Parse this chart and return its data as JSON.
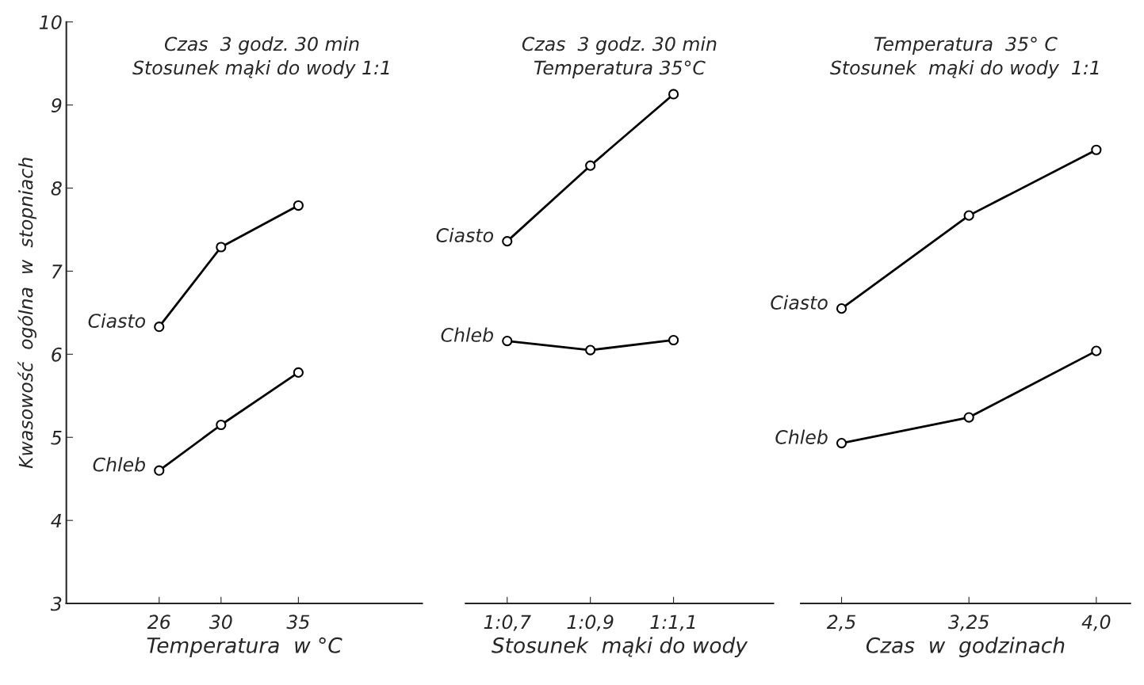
{
  "chart_data": [
    {
      "type": "line",
      "title": "Czas  3 godz. 30 min",
      "subtitle": "Stosunek mąki do wody 1:1",
      "xlabel": "Temperatura  w °C",
      "ylabel": "Kwasowość  ogólna  w  stopniach",
      "x": [
        26,
        30,
        35
      ],
      "xlim": [
        20,
        43
      ],
      "xticks": [
        26,
        30,
        35
      ],
      "ylim": [
        3,
        10
      ],
      "yticks": [
        3,
        4,
        5,
        6,
        7,
        8,
        9,
        10
      ],
      "marker": "circle",
      "series": [
        {
          "name": "Ciasto",
          "color": "#000000",
          "values": [
            6.33,
            7.29,
            7.79
          ]
        },
        {
          "name": "Chleb",
          "color": "#000000",
          "values": [
            4.6,
            5.15,
            5.78
          ]
        }
      ]
    },
    {
      "type": "line",
      "title": "Czas  3 godz. 30 min",
      "subtitle": "Temperatura 35°C",
      "xlabel": "Stosunek  mąki do wody",
      "categories": [
        "1:0,7",
        "1:0,9",
        "1:1,1"
      ],
      "ylim": [
        3,
        10
      ],
      "tick_labels": "x",
      "marker": "circle",
      "series": [
        {
          "name": "Ciasto",
          "color": "#000000",
          "values": [
            7.36,
            8.27,
            9.13
          ]
        },
        {
          "name": "Chleb",
          "color": "#000000",
          "values": [
            6.16,
            6.05,
            6.17
          ]
        }
      ]
    },
    {
      "type": "line",
      "title": "Temperatura  35° C",
      "subtitle": "Stosunek  mąki do wody  1:1",
      "xlabel": "Czas  w  godzinach",
      "x": [
        2.5,
        3.25,
        4.0
      ],
      "xlim": [
        2.26,
        4.2
      ],
      "xticks": [
        {
          "value": 2.5,
          "label": "2,5"
        },
        {
          "value": 3.25,
          "label": "3,25"
        },
        {
          "value": 4.0,
          "label": "4,0"
        }
      ],
      "ylim": [
        3,
        10
      ],
      "tick_labels": "x",
      "marker": "circle",
      "series": [
        {
          "name": "Ciasto",
          "color": "#000000",
          "values": [
            6.55,
            7.67,
            8.46
          ]
        },
        {
          "name": "Chleb",
          "color": "#000000",
          "values": [
            4.93,
            5.24,
            6.04
          ]
        }
      ]
    }
  ]
}
